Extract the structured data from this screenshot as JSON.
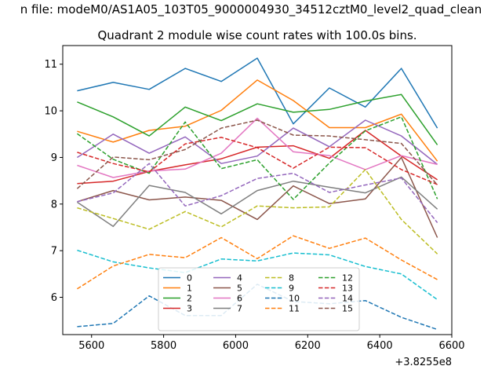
{
  "figure": {
    "suptitle": "n file: modeM0/AS1A05_103T05_9000004930_34512cztM0_level2_quad_clean"
  },
  "chart_data": {
    "type": "line",
    "title": "Quadrant 2 module wise count rates with 100.0s bins.",
    "xlabel": "",
    "ylabel": "",
    "x_offset_label": "+3.8255e8",
    "x": [
      5560,
      5660,
      5760,
      5860,
      5960,
      6060,
      6160,
      6260,
      6360,
      6460,
      6560
    ],
    "xlim": [
      5520,
      6600
    ],
    "ylim": [
      5.2,
      11.4
    ],
    "xticks": [
      5600,
      5800,
      6000,
      6200,
      6400,
      6600
    ],
    "yticks": [
      6,
      7,
      8,
      9,
      10,
      11
    ],
    "grid": false,
    "legend_position": "lower center",
    "legend_columns": 4,
    "series": [
      {
        "name": "0",
        "color": "#1f77b4",
        "dash": "solid",
        "values": [
          10.43,
          10.61,
          10.46,
          10.91,
          10.63,
          11.13,
          9.72,
          10.49,
          10.08,
          10.91,
          9.63
        ]
      },
      {
        "name": "1",
        "color": "#ff7f0e",
        "dash": "solid",
        "values": [
          9.56,
          9.33,
          9.58,
          9.67,
          10.01,
          10.66,
          10.22,
          9.64,
          9.64,
          9.93,
          8.92
        ]
      },
      {
        "name": "2",
        "color": "#2ca02c",
        "dash": "solid",
        "values": [
          10.19,
          9.87,
          9.46,
          10.08,
          9.79,
          10.15,
          9.97,
          10.03,
          10.21,
          10.35,
          9.27
        ]
      },
      {
        "name": "3",
        "color": "#d62728",
        "dash": "solid",
        "values": [
          8.44,
          8.49,
          8.7,
          8.84,
          8.97,
          9.22,
          9.25,
          8.98,
          9.58,
          9.03,
          8.52
        ]
      },
      {
        "name": "4",
        "color": "#9467bd",
        "dash": "solid",
        "values": [
          9.0,
          9.5,
          9.09,
          9.44,
          8.87,
          9.03,
          9.63,
          9.23,
          9.8,
          9.46,
          8.85
        ]
      },
      {
        "name": "5",
        "color": "#8c564b",
        "dash": "solid",
        "values": [
          8.05,
          8.29,
          8.09,
          8.15,
          8.08,
          7.67,
          8.39,
          8.01,
          8.11,
          9.0,
          7.28
        ]
      },
      {
        "name": "6",
        "color": "#e377c2",
        "dash": "solid",
        "values": [
          8.83,
          8.57,
          8.71,
          8.75,
          9.09,
          9.84,
          9.12,
          9.04,
          8.74,
          9.04,
          8.85
        ]
      },
      {
        "name": "7",
        "color": "#7f7f7f",
        "dash": "solid",
        "values": [
          8.04,
          7.52,
          8.4,
          8.25,
          7.79,
          8.29,
          8.49,
          8.36,
          8.24,
          8.58,
          7.89
        ]
      },
      {
        "name": "8",
        "color": "#bcbd22",
        "dash": "dashed",
        "values": [
          7.92,
          7.69,
          7.46,
          7.84,
          7.51,
          7.96,
          7.92,
          7.94,
          8.74,
          7.67,
          6.93
        ]
      },
      {
        "name": "9",
        "color": "#17becf",
        "dash": "dashed",
        "values": [
          7.01,
          6.76,
          6.63,
          6.53,
          6.82,
          6.78,
          6.95,
          6.91,
          6.66,
          6.5,
          5.95
        ]
      },
      {
        "name": "10",
        "color": "#1f77b4",
        "dash": "dashed",
        "values": [
          5.37,
          5.44,
          6.03,
          5.61,
          5.61,
          6.28,
          5.91,
          5.86,
          5.93,
          5.57,
          5.31
        ]
      },
      {
        "name": "11",
        "color": "#ff7f0e",
        "dash": "dashed",
        "values": [
          6.18,
          6.67,
          6.92,
          6.85,
          7.28,
          6.83,
          7.32,
          7.05,
          7.27,
          6.8,
          6.38
        ]
      },
      {
        "name": "12",
        "color": "#2ca02c",
        "dash": "dashed",
        "values": [
          9.51,
          8.96,
          8.66,
          9.76,
          8.76,
          8.95,
          8.1,
          8.88,
          9.57,
          9.87,
          8.11
        ]
      },
      {
        "name": "13",
        "color": "#d62728",
        "dash": "dashed",
        "values": [
          9.11,
          8.87,
          8.69,
          9.29,
          9.43,
          9.21,
          8.77,
          9.22,
          9.21,
          8.74,
          8.42
        ]
      },
      {
        "name": "14",
        "color": "#9467bd",
        "dash": "dashed",
        "values": [
          8.05,
          8.24,
          8.87,
          7.96,
          8.18,
          8.55,
          8.66,
          8.25,
          8.41,
          8.56,
          7.6
        ]
      },
      {
        "name": "15",
        "color": "#8c564b",
        "dash": "dashed",
        "values": [
          8.33,
          9.01,
          8.95,
          9.17,
          9.63,
          9.8,
          9.48,
          9.46,
          9.38,
          9.3,
          8.41
        ]
      }
    ]
  }
}
